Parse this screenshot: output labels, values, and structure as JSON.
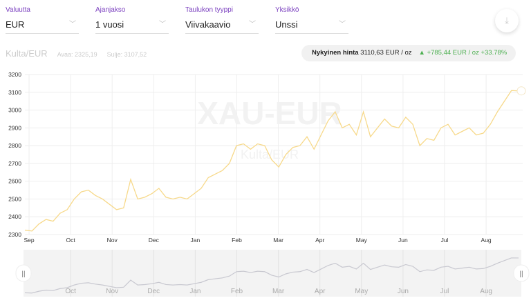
{
  "selectors": [
    {
      "label": "Valuutta",
      "value": "EUR"
    },
    {
      "label": "Ajanjakso",
      "value": "1 vuosi"
    },
    {
      "label": "Taulukon tyyppi",
      "value": "Viivakaavio"
    },
    {
      "label": "Yksikkö",
      "value": "Unssi"
    }
  ],
  "download_icon": "download-icon",
  "pair": "Kulta/EUR",
  "open": "Avaa: 2325,19",
  "close": "Sulje: 3107,52",
  "price_label": "Nykyinen hinta",
  "price_value": "3110,63 EUR / oz",
  "change": "+785,44 EUR / oz +33.78%",
  "colors": {
    "line": "#f7d98a",
    "accent": "#7a3fbf",
    "up": "#4caf50",
    "nav": "#c8c8d0"
  },
  "chart_data": {
    "type": "line",
    "watermark": "XAU-EUR",
    "watermark_sub": "Kulta/EUR",
    "ylim": [
      2300,
      3200
    ],
    "yticks": [
      2300,
      2400,
      2500,
      2600,
      2700,
      2800,
      2900,
      3000,
      3100,
      3200
    ],
    "months": [
      "Sep",
      "Oct",
      "Nov",
      "Dec",
      "Jan",
      "Feb",
      "Mar",
      "Apr",
      "May",
      "Jun",
      "Jul",
      "Aug"
    ],
    "navigator_months": [
      "Oct",
      "Nov",
      "Dec",
      "Jan",
      "Feb",
      "Mar",
      "Apr",
      "May",
      "Jun",
      "Jul",
      "Aug"
    ],
    "values": [
      2325,
      2320,
      2360,
      2385,
      2375,
      2420,
      2440,
      2500,
      2540,
      2550,
      2520,
      2500,
      2470,
      2440,
      2450,
      2610,
      2500,
      2510,
      2530,
      2560,
      2510,
      2500,
      2510,
      2500,
      2530,
      2560,
      2620,
      2640,
      2660,
      2700,
      2800,
      2810,
      2780,
      2810,
      2800,
      2720,
      2680,
      2750,
      2790,
      2800,
      2850,
      2780,
      2860,
      2940,
      2990,
      2900,
      2920,
      2860,
      2990,
      2850,
      2900,
      2950,
      2910,
      2900,
      2960,
      2920,
      2800,
      2840,
      2830,
      2900,
      2920,
      2860,
      2880,
      2900,
      2860,
      2870,
      2920,
      2990,
      3050,
      3110,
      3108
    ]
  }
}
